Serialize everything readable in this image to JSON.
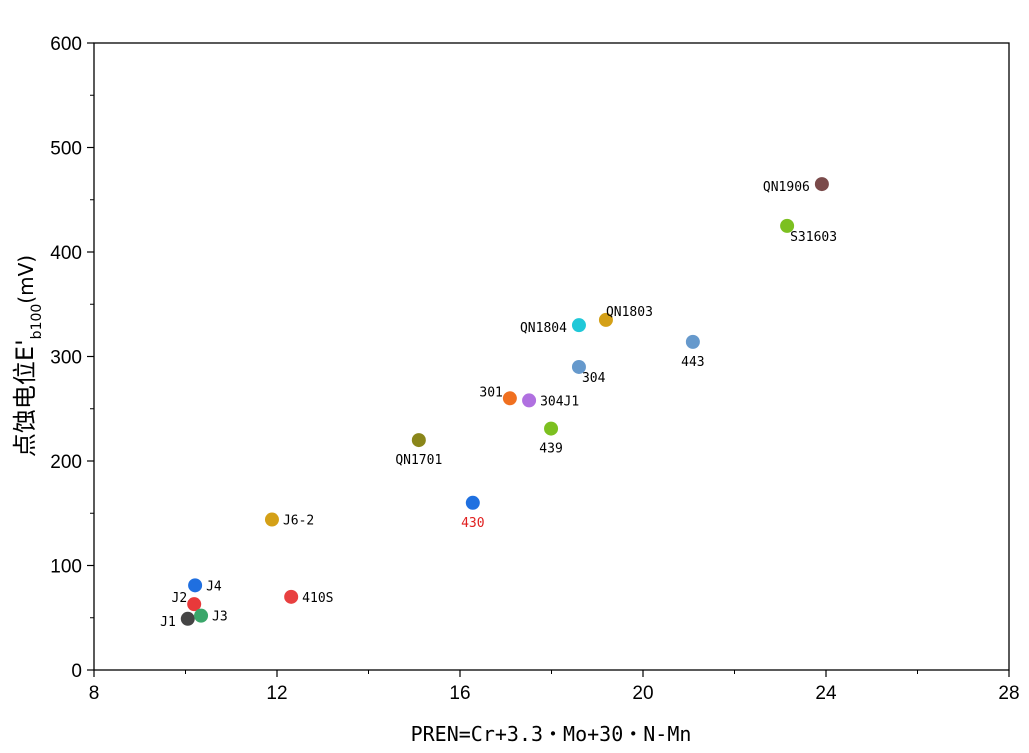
{
  "chart_data": {
    "type": "scatter",
    "title": "",
    "xlabel": "PREN=Cr+3.3・Mo+30・N-Mn",
    "ylabel_main": "点蚀电位E'",
    "ylabel_sub": "b100",
    "ylabel_unit": "(mV)",
    "xlim": [
      8,
      28
    ],
    "ylim": [
      0,
      600
    ],
    "xticks": [
      8,
      12,
      16,
      20,
      24,
      28
    ],
    "yticks": [
      0,
      100,
      200,
      300,
      400,
      500,
      600
    ],
    "xtick_labels": [
      "8",
      "12",
      "16",
      "20",
      "24",
      "28"
    ],
    "ytick_labels": [
      "0",
      "100",
      "200",
      "300",
      "400",
      "500",
      "600"
    ],
    "grid": false,
    "points": [
      {
        "label": "J1",
        "x": 10.05,
        "y": 49,
        "color": "#454545",
        "label_pos": "left",
        "label_color": "#000000"
      },
      {
        "label": "J2",
        "x": 10.19,
        "y": 63,
        "color": "#e8393a",
        "label_pos": "left-up",
        "label_color": "#000000"
      },
      {
        "label": "J3",
        "x": 10.34,
        "y": 52,
        "color": "#3aa66a",
        "label_pos": "right",
        "label_color": "#000000"
      },
      {
        "label": "J4",
        "x": 10.21,
        "y": 81,
        "color": "#1f6fe0",
        "label_pos": "right",
        "label_color": "#000000"
      },
      {
        "label": "J6-2",
        "x": 11.89,
        "y": 144,
        "color": "#d4a017",
        "label_pos": "right",
        "label_color": "#000000"
      },
      {
        "label": "410S",
        "x": 12.31,
        "y": 70,
        "color": "#e84040",
        "label_pos": "right",
        "label_color": "#000000"
      },
      {
        "label": "QN1701",
        "x": 15.1,
        "y": 220,
        "color": "#8a861a",
        "label_pos": "below",
        "label_color": "#000000"
      },
      {
        "label": "430",
        "x": 16.28,
        "y": 160,
        "color": "#1f70e0",
        "label_pos": "below",
        "label_color": "#e02020"
      },
      {
        "label": "301",
        "x": 17.09,
        "y": 260,
        "color": "#f07020",
        "label_pos": "left-up",
        "label_color": "#000000"
      },
      {
        "label": "304J1",
        "x": 17.51,
        "y": 258,
        "color": "#b070e0",
        "label_pos": "right",
        "label_color": "#000000"
      },
      {
        "label": "439",
        "x": 17.99,
        "y": 231,
        "color": "#7cc020",
        "label_pos": "below",
        "label_color": "#000000"
      },
      {
        "label": "304",
        "x": 18.6,
        "y": 290,
        "color": "#6699cc",
        "label_pos": "below-right",
        "label_color": "#000000"
      },
      {
        "label": "QN1804",
        "x": 18.6,
        "y": 330,
        "color": "#20c8d8",
        "label_pos": "left",
        "label_color": "#000000"
      },
      {
        "label": "QN1803",
        "x": 19.19,
        "y": 335,
        "color": "#d4a017",
        "label_pos": "above-right",
        "label_color": "#000000"
      },
      {
        "label": "443",
        "x": 21.09,
        "y": 314,
        "color": "#6699cc",
        "label_pos": "below",
        "label_color": "#000000"
      },
      {
        "label": "S31603",
        "x": 23.15,
        "y": 425,
        "color": "#7cc020",
        "label_pos": "below-right",
        "label_color": "#000000"
      },
      {
        "label": "QN1906",
        "x": 23.91,
        "y": 465,
        "color": "#7a4a4a",
        "label_pos": "left",
        "label_color": "#000000"
      }
    ]
  }
}
